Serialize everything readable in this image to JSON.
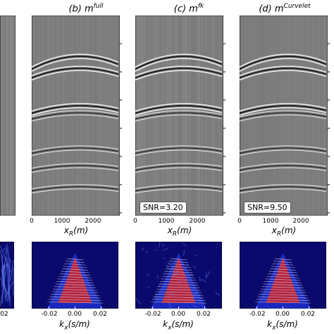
{
  "panels": [
    {
      "id": "a",
      "title": "",
      "snr": "",
      "xticks": [],
      "kticks": [
        "02"
      ]
    },
    {
      "id": "b",
      "title_prefix": "(b) m",
      "title_sup": "full",
      "snr": "",
      "xticks": [
        "0",
        "1000",
        "2000"
      ],
      "kticks": [
        "-0.02",
        "0.00",
        "0.02"
      ]
    },
    {
      "id": "c",
      "title_prefix": "(c) m",
      "title_sup": "fk",
      "snr": "SNR=3.20",
      "xticks": [
        "0",
        "1000",
        "2000"
      ],
      "kticks": [
        "-0.02",
        "0.00",
        "0.02"
      ]
    },
    {
      "id": "d",
      "title_prefix": "(d) m",
      "title_sup": "Curvelet",
      "snr": "SNR=9.50",
      "xticks": [
        "0",
        "1000",
        "2000"
      ],
      "kticks": [
        "-0.02",
        "0.00",
        "0.02"
      ]
    }
  ],
  "labels": {
    "xr": "x",
    "xr_sub": "R",
    "xr_unit": "(m)",
    "kx": "k",
    "kx_sub": "x",
    "kx_unit": "(s/m)"
  },
  "colors": {
    "seismic_bg": "#808080",
    "spectrum_bg": "#0a0a6e",
    "spectrum_hot": "#d62020"
  }
}
